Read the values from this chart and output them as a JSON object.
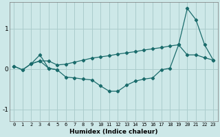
{
  "xlabel": "Humidex (Indice chaleur)",
  "background_color": "#cde8e8",
  "grid_color": "#aacccc",
  "line_color": "#1a6b6b",
  "xlim": [
    -0.5,
    23.5
  ],
  "ylim": [
    -1.3,
    1.65
  ],
  "xticks": [
    0,
    1,
    2,
    3,
    4,
    5,
    6,
    7,
    8,
    9,
    10,
    11,
    12,
    13,
    14,
    15,
    16,
    17,
    18,
    19,
    20,
    21,
    22,
    23
  ],
  "yticks": [
    -1,
    0,
    1
  ],
  "series": [
    {
      "x": [
        0,
        1,
        2,
        3,
        4,
        5,
        6,
        7,
        8,
        9,
        10,
        11,
        12,
        13,
        14,
        15,
        16,
        17,
        18,
        19,
        20,
        21,
        22,
        23
      ],
      "y": [
        0.07,
        -0.02,
        0.13,
        0.2,
        0.2,
        0.1,
        0.12,
        0.17,
        0.22,
        0.27,
        0.3,
        0.33,
        0.37,
        0.4,
        0.43,
        0.47,
        0.5,
        0.53,
        0.57,
        0.6,
        1.5,
        1.22,
        0.6,
        0.22
      ]
    },
    {
      "x": [
        0,
        1,
        2,
        3,
        4,
        5,
        6,
        7,
        8,
        9,
        10,
        11,
        12,
        13,
        14,
        15,
        16,
        17,
        18,
        19,
        20,
        21,
        22,
        23
      ],
      "y": [
        0.07,
        -0.02,
        0.13,
        0.2,
        0.02,
        -0.02,
        -0.2,
        -0.22,
        -0.25,
        -0.27,
        -0.42,
        -0.55,
        -0.55,
        -0.4,
        -0.3,
        -0.25,
        -0.22,
        -0.02,
        0.02,
        0.6,
        0.35,
        0.35,
        0.28,
        0.22
      ]
    },
    {
      "x": [
        2,
        3,
        4,
        5
      ],
      "y": [
        0.13,
        0.35,
        0.02,
        -0.02
      ]
    }
  ]
}
